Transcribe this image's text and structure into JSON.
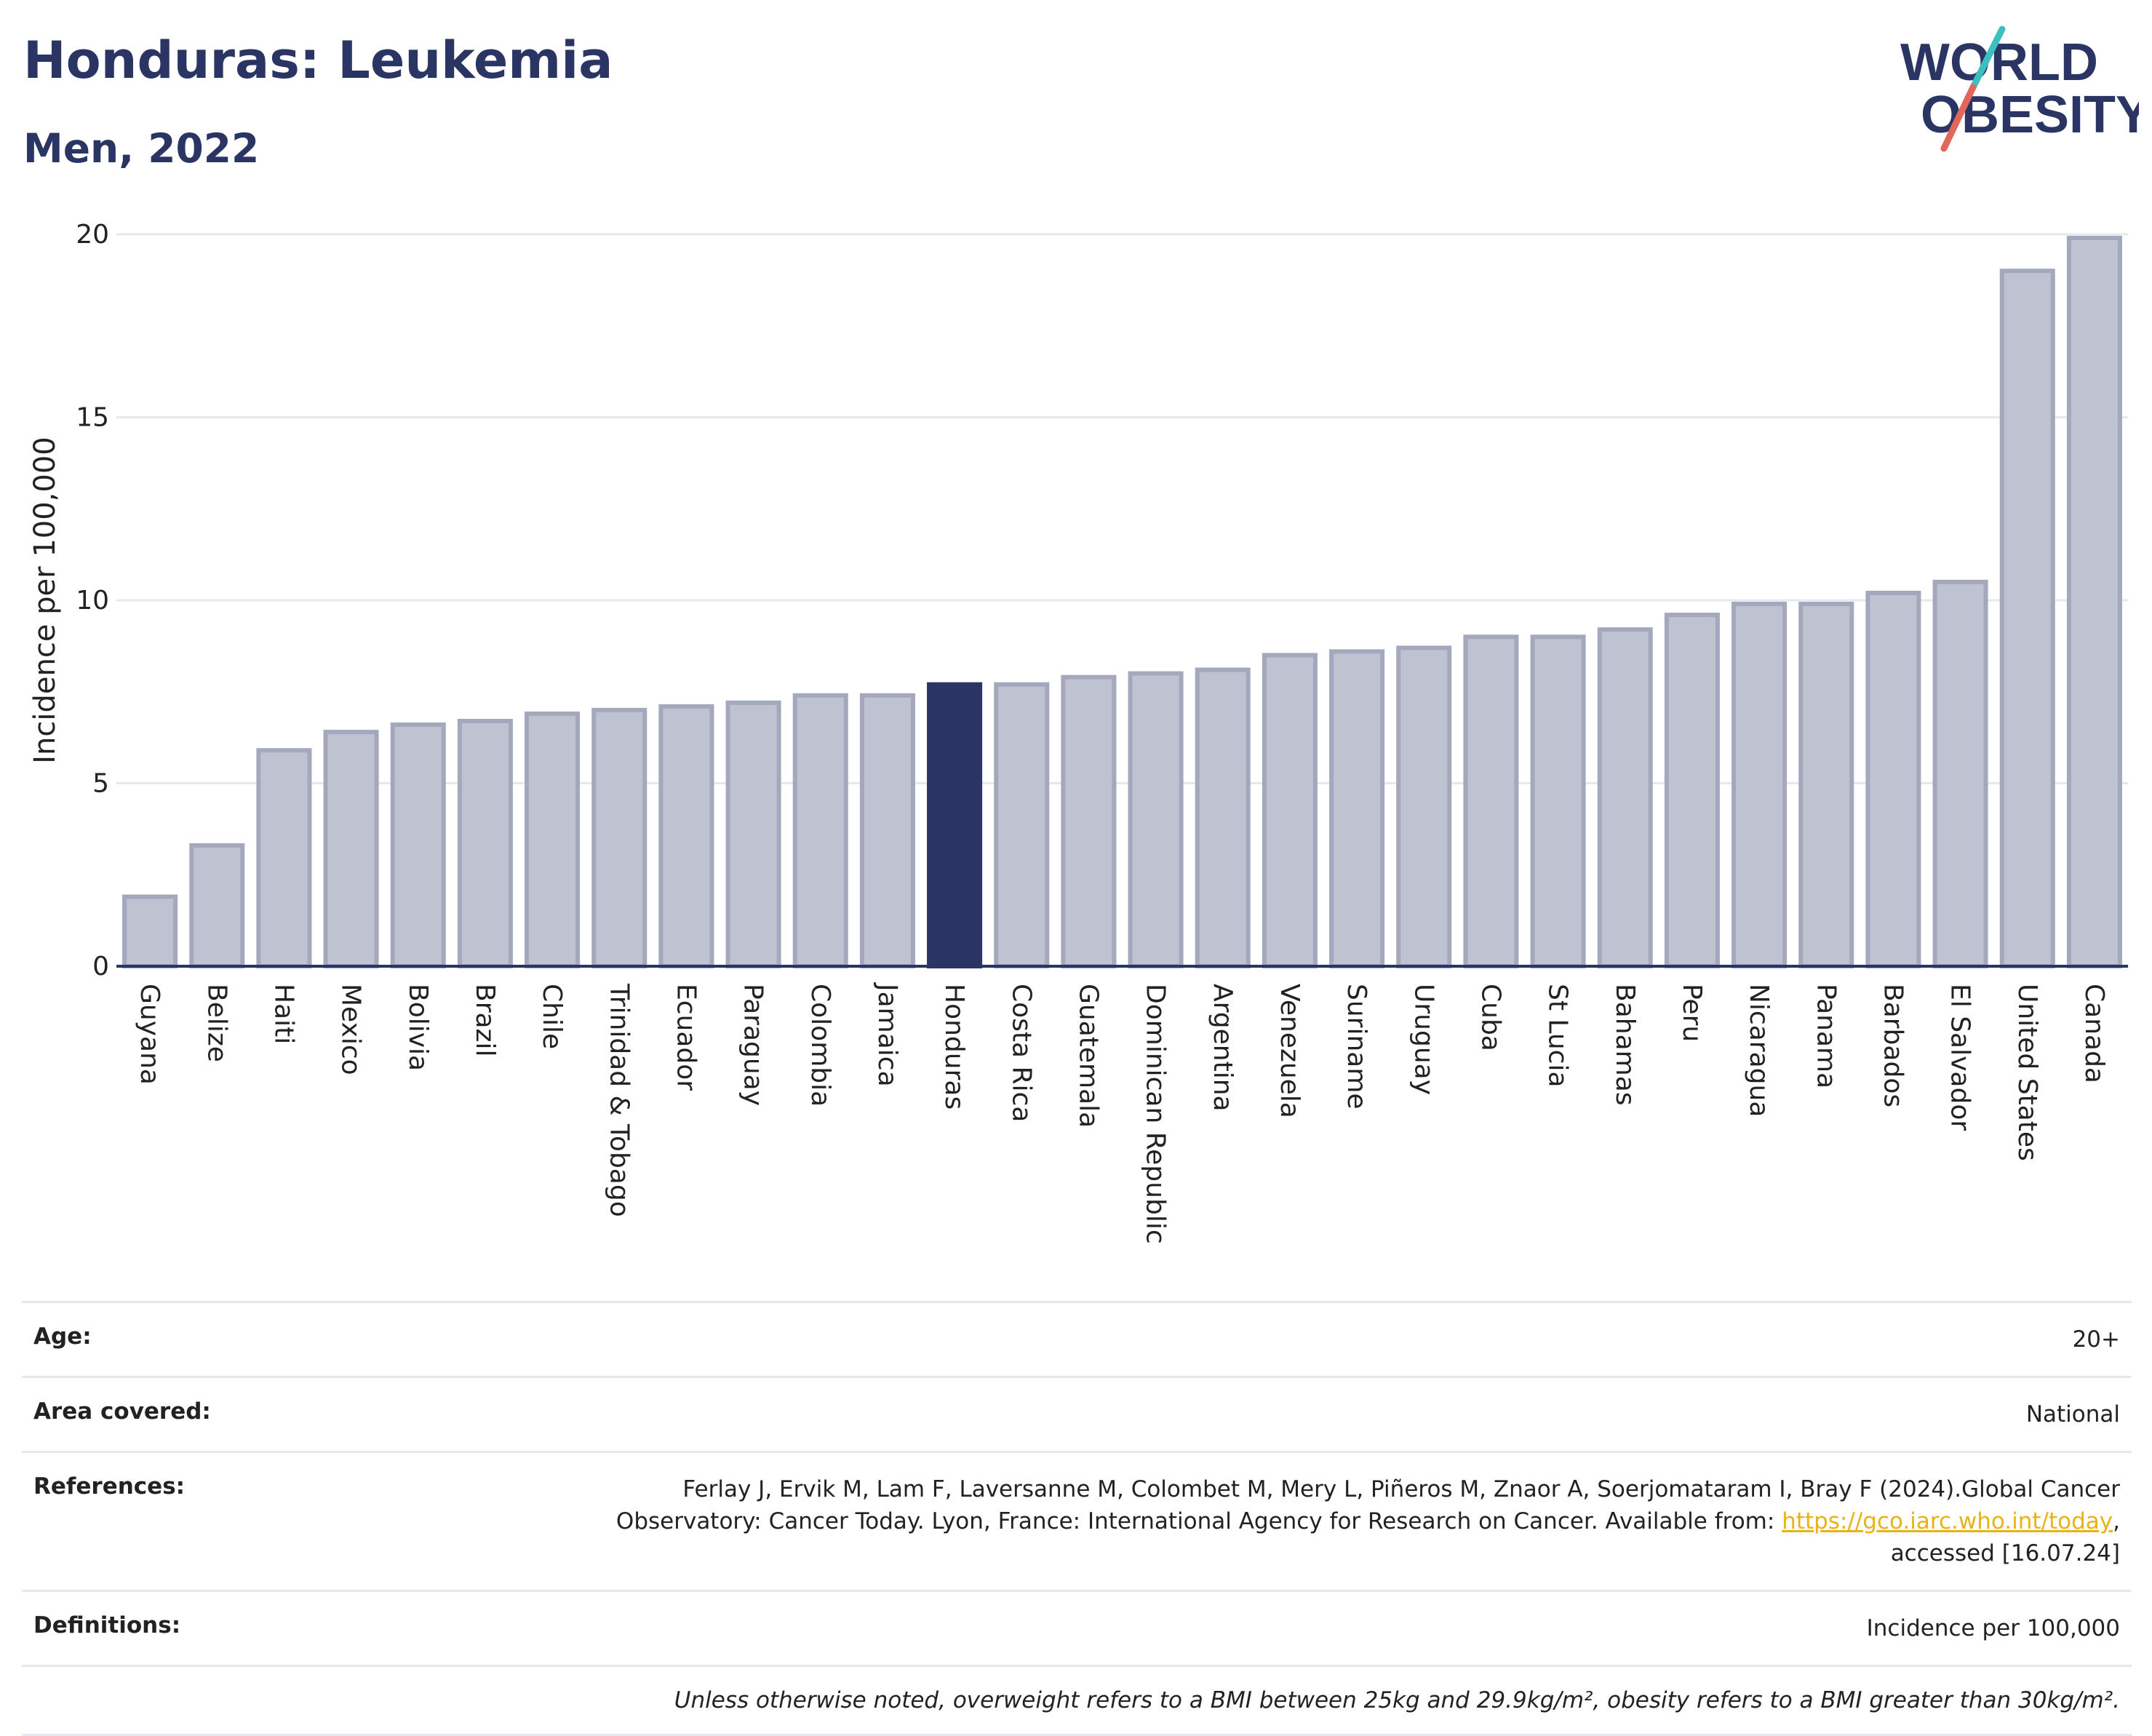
{
  "header": {
    "title": "Honduras: Leukemia",
    "subtitle": "Men, 2022"
  },
  "logo": {
    "line1": "WORLD",
    "line2": "OBESITY",
    "colors": {
      "text": "#2b3564",
      "slash_teal": "#3bbfbf",
      "slash_red": "#e2675a"
    }
  },
  "colors": {
    "bar": "#bfc2d0",
    "bar_stroke": "#a4a8bc",
    "highlight": "#2b3564",
    "grid": "#e6e8ef",
    "axis": "#2b3564"
  },
  "chart_data": {
    "type": "bar",
    "ylabel": "Incidence per 100,000",
    "ylim": [
      0,
      20
    ],
    "yticks": [
      0,
      5,
      10,
      15,
      20
    ],
    "grid": true,
    "highlight": "Honduras",
    "categories": [
      "Guyana",
      "Belize",
      "Haiti",
      "Mexico",
      "Bolivia",
      "Brazil",
      "Chile",
      "Trinidad & Tobago",
      "Ecuador",
      "Paraguay",
      "Colombia",
      "Jamaica",
      "Honduras",
      "Costa Rica",
      "Guatemala",
      "Dominican Republic",
      "Argentina",
      "Venezuela",
      "Suriname",
      "Uruguay",
      "Cuba",
      "St Lucia",
      "Bahamas",
      "Peru",
      "Nicaragua",
      "Panama",
      "Barbados",
      "El Salvador",
      "United States",
      "Canada"
    ],
    "values": [
      1.9,
      3.3,
      5.9,
      6.4,
      6.6,
      6.7,
      6.9,
      7.0,
      7.1,
      7.2,
      7.4,
      7.4,
      7.7,
      7.7,
      7.9,
      8.0,
      8.1,
      8.5,
      8.6,
      8.7,
      9.0,
      9.0,
      9.2,
      9.6,
      9.9,
      9.9,
      10.2,
      10.5,
      19.0,
      19.9
    ]
  },
  "info": {
    "age": {
      "label": "Age:",
      "value": "20+"
    },
    "area": {
      "label": "Area covered:",
      "value": "National"
    },
    "references": {
      "label": "References:",
      "line1": "Ferlay J, Ervik M, Lam F, Laversanne M, Colombet M, Mery L, Piñeros M, Znaor A, Soerjomataram I, Bray F (2024).Global Cancer",
      "line2": "Observatory: Cancer Today. Lyon, France: International Agency for Research on Cancer. Available from: ",
      "link": "https://gco.iarc.who.int/today",
      "after_link": ",",
      "line3": "accessed [16.07.24]"
    },
    "definitions": {
      "label": "Definitions:",
      "value": "Incidence per 100,000"
    },
    "note": "Unless otherwise noted, overweight refers to a BMI between 25kg and 29.9kg/m², obesity refers to a BMI greater than 30kg/m²."
  }
}
